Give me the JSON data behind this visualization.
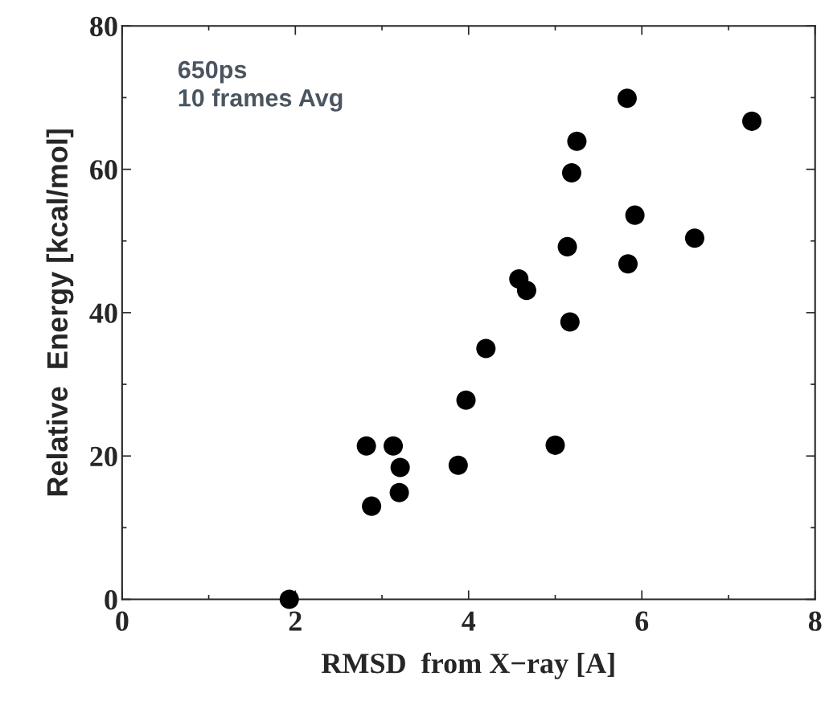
{
  "chart_data": {
    "type": "scatter",
    "xlabel": "RMSD  from X−ray [A]",
    "ylabel": "Relative  Energy [kcal/mol]",
    "annotations": [
      "650ps\n10 frames Avg"
    ],
    "x": [
      1.93,
      2.82,
      2.88,
      3.13,
      3.21,
      3.2,
      3.88,
      3.97,
      4.2,
      4.58,
      4.67,
      5.0,
      5.14,
      5.17,
      5.19,
      5.25,
      5.83,
      5.84,
      5.92,
      6.61,
      7.27
    ],
    "series": [
      {
        "color": "#000000",
        "values": [
          0,
          21.4,
          13.0,
          21.4,
          18.4,
          14.9,
          18.7,
          27.8,
          35.0,
          44.7,
          43.1,
          21.5,
          49.2,
          38.7,
          59.5,
          63.9,
          69.9,
          46.8,
          53.6,
          50.4,
          66.7
        ]
      }
    ],
    "xlim": [
      0,
      8
    ],
    "ylim": [
      0,
      80
    ],
    "xticks": [
      0,
      2,
      4,
      6,
      8
    ],
    "yticks": [
      0,
      20,
      40,
      60,
      80
    ],
    "marker": "circle",
    "grid": false,
    "legend": false
  }
}
